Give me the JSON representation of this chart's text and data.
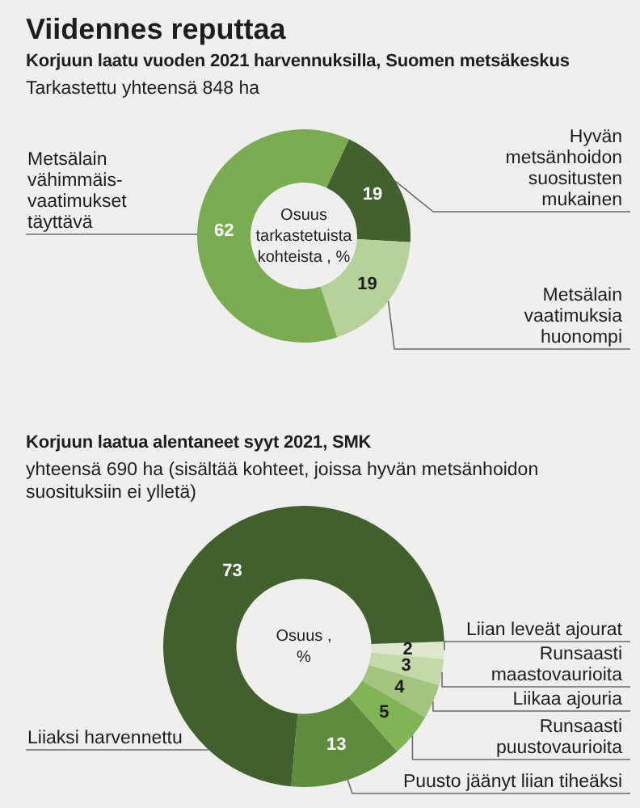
{
  "chart_data": [
    {
      "type": "donut",
      "title": "Viidennes reputtaa",
      "subtitle": "Korjuun laatu vuoden 2021 harvennuksilla, Suomen metsäkeskus",
      "annotations": [
        "Tarkastettu yhteensä 848 ha",
        "Osuus tarkastetuista kohteista , %"
      ],
      "categories": [
        "Hyvän metsänhoidon suositusten mukainen",
        "Metsälain vaatimuksia huonompi",
        "Metsälain vähimmäis-vaatimukset täyttävä"
      ],
      "values": [
        19,
        19,
        62
      ],
      "colors": [
        "#43612f",
        "#b7d19b",
        "#7bac53"
      ],
      "data_labels": true,
      "legend": false
    },
    {
      "type": "donut",
      "title": "Korjuun laatua alentaneet syyt 2021, SMK",
      "subtitle": "yhteensä 690 ha (sisältää kohteet, joissa hyvän metsänhoidon suosituksiin ei ylletä)",
      "annotations": [
        "Osuus , %"
      ],
      "categories": [
        "Liian leveät ajourat",
        "Runsaasti maastovaurioita",
        "Liikaa ajouria",
        "Runsaasti puustovaurioita",
        "Puusto jäänyt liian tiheäksi",
        "Liiaksi harvennettu"
      ],
      "values": [
        2,
        3,
        4,
        5,
        13,
        73
      ],
      "colors": [
        "#dde8cc",
        "#c3d9a9",
        "#a2c47e",
        "#80b457",
        "#5e8b3e",
        "#42602e"
      ],
      "data_labels": true,
      "legend": false
    }
  ]
}
